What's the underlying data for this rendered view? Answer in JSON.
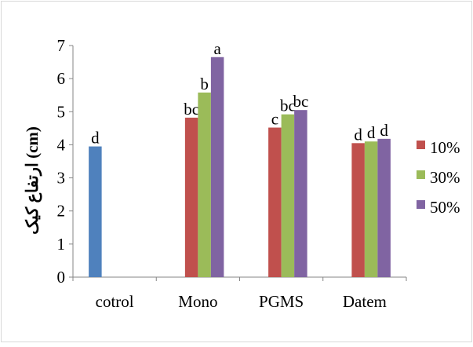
{
  "chart_data": {
    "type": "bar",
    "ylabel": "(cm) ارتفاع کیک",
    "ylim": [
      0,
      7
    ],
    "yticks": [
      "0",
      "1",
      "2",
      "3",
      "4",
      "5",
      "6",
      "7"
    ],
    "categories": [
      "cotrol",
      "Mono",
      "PGMS",
      "Datem"
    ],
    "control_series": {
      "color": "#4f81bd",
      "values": [
        3.95,
        null,
        null,
        null
      ],
      "labels": [
        "d",
        null,
        null,
        null
      ]
    },
    "series": [
      {
        "name": "10%",
        "color": "#c0504d",
        "values": [
          null,
          4.82,
          4.52,
          4.05
        ],
        "labels": [
          null,
          "bc",
          "c",
          "d"
        ]
      },
      {
        "name": "30%",
        "color": "#9bbb59",
        "values": [
          null,
          5.58,
          4.92,
          4.1
        ],
        "labels": [
          null,
          "b",
          "bc",
          "d"
        ]
      },
      {
        "name": "50%",
        "color": "#8064a2",
        "values": [
          null,
          6.65,
          5.05,
          4.18
        ],
        "labels": [
          null,
          "a",
          "bc",
          "d"
        ]
      }
    ],
    "legend_position": "right",
    "grid": false
  }
}
